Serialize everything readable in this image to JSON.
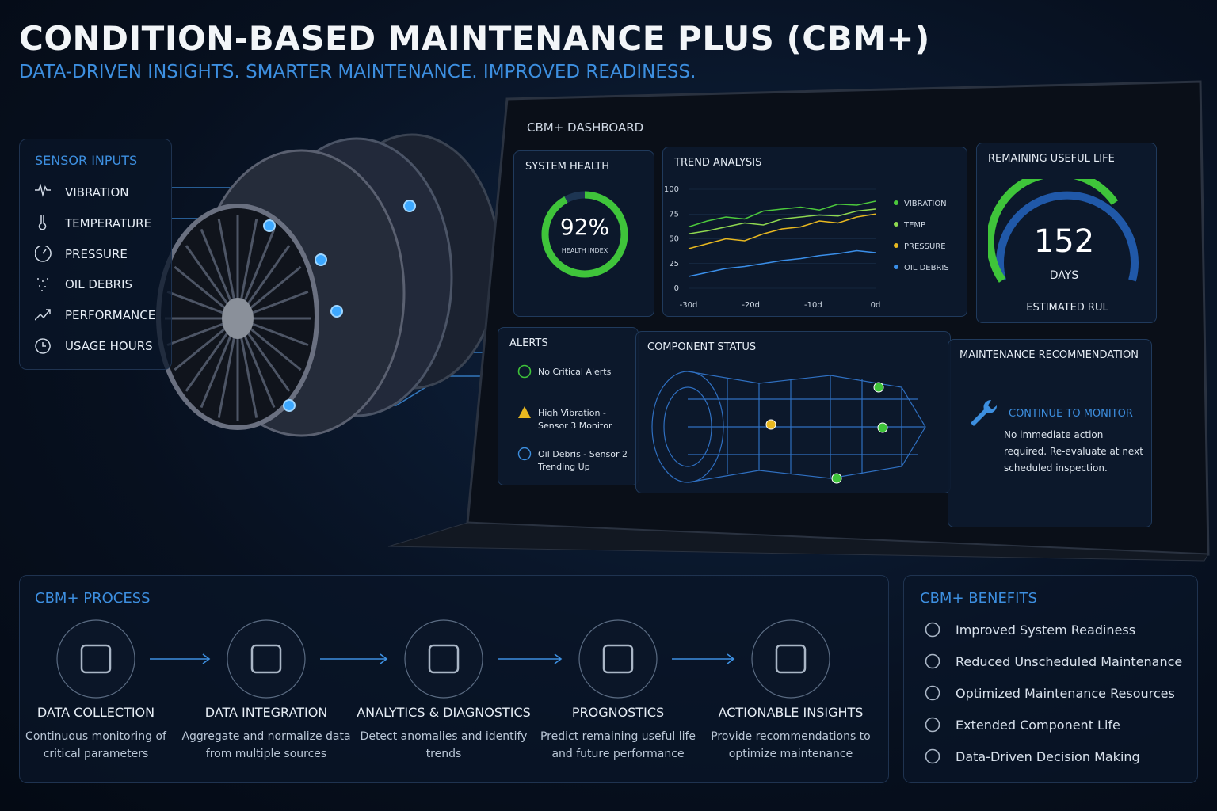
{
  "header": {
    "title": "CONDITION-BASED MAINTENANCE PLUS (CBM+)",
    "subtitle": "DATA-DRIVEN INSIGHTS. SMARTER MAINTENANCE. IMPROVED READINESS."
  },
  "sensor_inputs": {
    "title": "SENSOR INPUTS",
    "items": [
      "VIBRATION",
      "TEMPERATURE",
      "PRESSURE",
      "OIL DEBRIS",
      "PERFORMANCE",
      "USAGE HOURS"
    ]
  },
  "dashboard": {
    "title": "CBM+ DASHBOARD",
    "system_health": {
      "title": "SYSTEM HEALTH",
      "value": 92,
      "label": "92%",
      "caption": "HEALTH INDEX"
    },
    "trend_analysis": {
      "title": "TREND ANALYSIS",
      "ylim": [
        0,
        100
      ],
      "yticks": [
        0,
        25,
        50,
        75,
        100
      ],
      "xlim": [
        -30,
        0
      ],
      "xticks": [
        {
          "value": -30,
          "label": "-30d"
        },
        {
          "value": -20,
          "label": "-20d"
        },
        {
          "value": -10,
          "label": "-10d"
        },
        {
          "value": 0,
          "label": "0d"
        }
      ],
      "x": [
        -30,
        -27,
        -24,
        -21,
        -18,
        -15,
        -12,
        -9,
        -6,
        -3,
        0
      ],
      "series": [
        {
          "name": "VIBRATION",
          "color": "#4cc83c",
          "values": [
            62,
            68,
            72,
            70,
            78,
            80,
            82,
            79,
            85,
            84,
            88
          ]
        },
        {
          "name": "TEMP",
          "color": "#8fd850",
          "values": [
            55,
            58,
            62,
            66,
            64,
            70,
            72,
            74,
            73,
            78,
            80
          ]
        },
        {
          "name": "PRESSURE",
          "color": "#e8b820",
          "values": [
            40,
            45,
            50,
            48,
            55,
            60,
            62,
            68,
            66,
            72,
            75
          ]
        },
        {
          "name": "OIL DEBRIS",
          "color": "#3a8ee8",
          "values": [
            12,
            16,
            20,
            22,
            25,
            28,
            30,
            33,
            35,
            38,
            36
          ]
        }
      ]
    },
    "remaining_useful_life": {
      "title": "REMAINING USEFUL LIFE",
      "value": 152,
      "unit": "DAYS",
      "caption": "ESTIMATED RUL"
    },
    "alerts": {
      "title": "ALERTS",
      "items": [
        "No Critical Alerts",
        "High Vibration - Sensor 3 Monitor",
        "Oil Debris - Sensor 2 Trending Up"
      ]
    },
    "component_status": {
      "title": "COMPONENT STATUS"
    },
    "maintenance_recommendation": {
      "title": "MAINTENANCE RECOMMENDATION",
      "action": "CONTINUE TO MONITOR",
      "detail": "No immediate action required. Re-evaluate at next scheduled inspection."
    }
  },
  "process": {
    "title": "CBM+ PROCESS",
    "steps": [
      {
        "title": "DATA COLLECTION",
        "description": "Continuous monitoring of critical parameters"
      },
      {
        "title": "DATA INTEGRATION",
        "description": "Aggregate and normalize data from multiple sources"
      },
      {
        "title": "ANALYTICS & DIAGNOSTICS",
        "description": "Detect anomalies and identify trends"
      },
      {
        "title": "PROGNOSTICS",
        "description": "Predict remaining useful life and future performance"
      },
      {
        "title": "ACTIONABLE INSIGHTS",
        "description": "Provide recommendations to optimize maintenance"
      }
    ]
  },
  "benefits": {
    "title": "CBM+ BENEFITS",
    "items": [
      "Improved System Readiness",
      "Reduced Unscheduled Maintenance",
      "Optimized Maintenance Resources",
      "Extended Component Life",
      "Data-Driven Decision Making"
    ]
  }
}
